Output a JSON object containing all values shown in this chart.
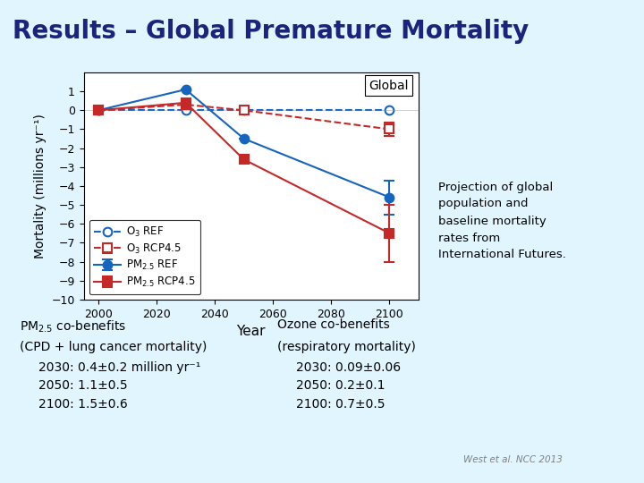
{
  "title": "Results – Global Premature Mortality",
  "title_color": "#1a237e",
  "title_bg_color": "#b3e5fc",
  "bg_color": "#e1f5fe",
  "years": [
    2000,
    2030,
    2050,
    2100
  ],
  "o3_ref": [
    0.0,
    0.0,
    0.0,
    0.0
  ],
  "o3_rcp45": [
    0.0,
    0.3,
    0.0,
    -1.0
  ],
  "pm25_ref": [
    0.0,
    1.1,
    -1.5,
    -4.6
  ],
  "pm25_rcp45": [
    0.0,
    0.4,
    -2.6,
    -6.5
  ],
  "pm25_ref_yerr": [
    0.0,
    0.0,
    0.0,
    0.9
  ],
  "pm25_rcp45_yerr": [
    0.0,
    0.0,
    0.0,
    1.5
  ],
  "o3_ref_yerr": [
    0.0,
    0.0,
    0.0,
    0.0
  ],
  "o3_rcp45_yerr": [
    0.0,
    0.0,
    0.0,
    0.35
  ],
  "blue_color": "#1565c0",
  "red_color": "#c62828",
  "ylim": [
    -10,
    2
  ],
  "yticks": [
    -10,
    -9,
    -8,
    -7,
    -6,
    -5,
    -4,
    -3,
    -2,
    -1,
    0,
    1
  ],
  "xticks": [
    2000,
    2020,
    2040,
    2060,
    2080,
    2100
  ],
  "xlabel": "Year",
  "ylabel": "Mortality (millions yr⁻¹)",
  "legend_label": "Global",
  "annotation_right_text": "Projection of global\npopulation and\nbaseline mortality\nrates from\nInternational Futures.",
  "bottom_left_title": "PM$_{2.5}$ co-benefits",
  "bottom_left_sub": "(CPD + lung cancer mortality)",
  "bottom_left_lines": [
    "2030: 0.4±0.2 million yr⁻¹",
    "2050: 1.1±0.5",
    "2100: 1.5±0.6"
  ],
  "bottom_right_title": "Ozone co-benefits",
  "bottom_right_sub": "(respiratory mortality)",
  "bottom_right_lines": [
    "2030: 0.09±0.06",
    "2050: 0.2±0.1",
    "2100: 0.7±0.5"
  ],
  "citation": "West et al. NCC 2013"
}
